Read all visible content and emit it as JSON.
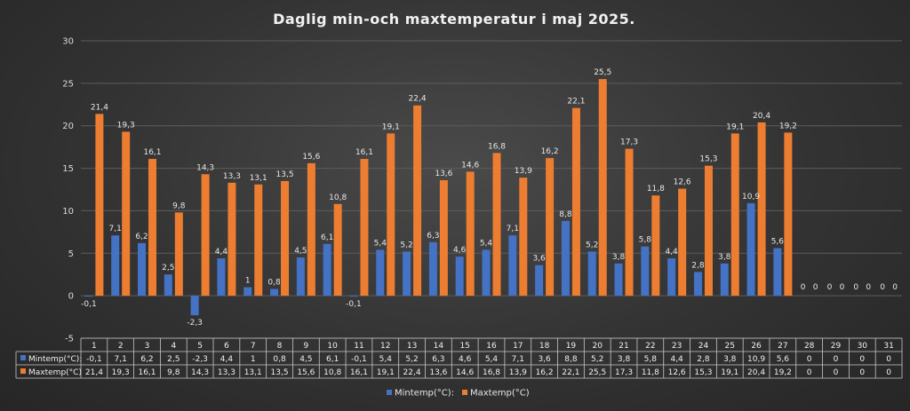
{
  "chart_data": {
    "type": "bar",
    "title": "Daglig min-och maxtemperatur i maj 2025.",
    "categories": [
      "1",
      "2",
      "3",
      "4",
      "5",
      "6",
      "7",
      "8",
      "9",
      "10",
      "11",
      "12",
      "13",
      "14",
      "15",
      "16",
      "17",
      "18",
      "19",
      "20",
      "21",
      "22",
      "23",
      "24",
      "25",
      "26",
      "27",
      "28",
      "29",
      "30",
      "31"
    ],
    "series": [
      {
        "name": "Mintemp(°C):",
        "color": "#4472C4",
        "values": [
          -0.1,
          7.1,
          6.2,
          2.5,
          -2.3,
          4.4,
          1,
          0.8,
          4.5,
          6.1,
          -0.1,
          5.4,
          5.2,
          6.3,
          4.6,
          5.4,
          7.1,
          3.6,
          8.8,
          5.2,
          3.8,
          5.8,
          4.4,
          2.8,
          3.8,
          10.9,
          5.6,
          0,
          0,
          0,
          0
        ],
        "labels": [
          "-0,1",
          "7,1",
          "6,2",
          "2,5",
          "-2,3",
          "4,4",
          "1",
          "0,8",
          "4,5",
          "6,1",
          "-0,1",
          "5,4",
          "5,2",
          "6,3",
          "4,6",
          "5,4",
          "7,1",
          "3,6",
          "8,8",
          "5,2",
          "3,8",
          "5,8",
          "4,4",
          "2,8",
          "3,8",
          "10,9",
          "5,6",
          "0",
          "0",
          "0",
          "0"
        ]
      },
      {
        "name": "Maxtemp(°C)",
        "color": "#ED7D31",
        "values": [
          21.4,
          19.3,
          16.1,
          9.8,
          14.3,
          13.3,
          13.1,
          13.5,
          15.6,
          10.8,
          16.1,
          19.1,
          22.4,
          13.6,
          14.6,
          16.8,
          13.9,
          16.2,
          22.1,
          25.5,
          17.3,
          11.8,
          12.6,
          15.3,
          19.1,
          20.4,
          19.2,
          0,
          0,
          0,
          0
        ],
        "labels": [
          "21,4",
          "19,3",
          "16,1",
          "9,8",
          "14,3",
          "13,3",
          "13,1",
          "13,5",
          "15,6",
          "10,8",
          "16,1",
          "19,1",
          "22,4",
          "13,6",
          "14,6",
          "16,8",
          "13,9",
          "16,2",
          "22,1",
          "25,5",
          "17,3",
          "11,8",
          "12,6",
          "15,3",
          "19,1",
          "20,4",
          "19,2",
          "0",
          "0",
          "0",
          "0"
        ]
      }
    ],
    "yticks": [
      "30",
      "25",
      "20",
      "15",
      "10",
      "5",
      "0",
      "-5"
    ],
    "ylim": [
      -5,
      30
    ],
    "grid": true,
    "legend": "bottom",
    "data_table": true
  }
}
